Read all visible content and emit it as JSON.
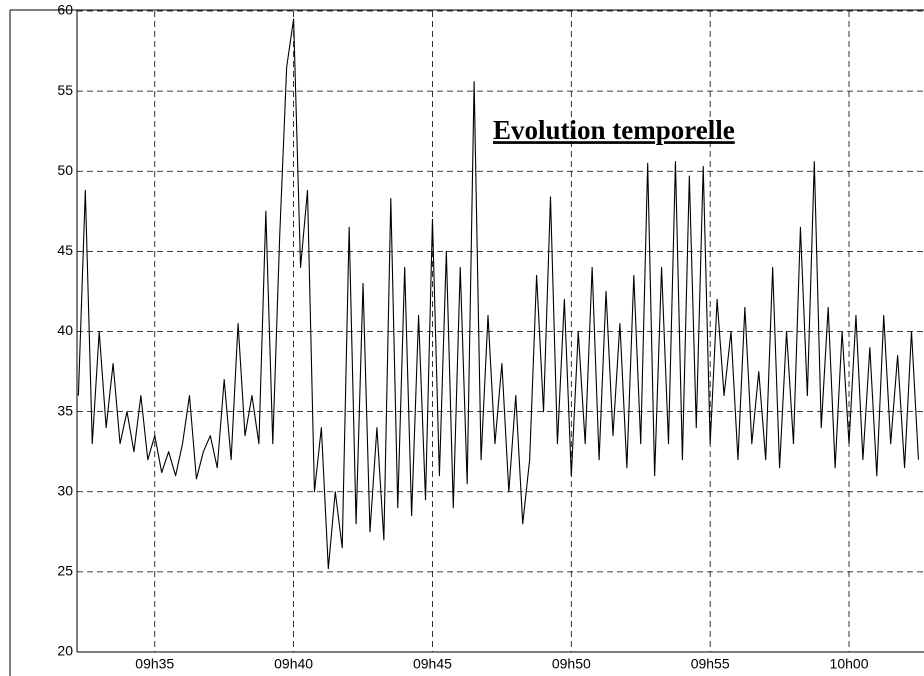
{
  "chart_data": {
    "type": "line",
    "title": "Evolution temporelle",
    "x": [
      572.25,
      572.5,
      572.75,
      573,
      573.25,
      573.5,
      573.75,
      574,
      574.25,
      574.5,
      574.75,
      575,
      575.25,
      575.5,
      575.75,
      576,
      576.25,
      576.5,
      576.75,
      577,
      577.25,
      577.5,
      577.75,
      578,
      578.25,
      578.5,
      578.75,
      579,
      579.25,
      579.5,
      579.75,
      580,
      580.25,
      580.5,
      580.75,
      581,
      581.25,
      581.5,
      581.75,
      582,
      582.25,
      582.5,
      582.75,
      583,
      583.25,
      583.5,
      583.75,
      584,
      584.25,
      584.5,
      584.75,
      585,
      585.25,
      585.5,
      585.75,
      586,
      586.25,
      586.5,
      586.75,
      587,
      587.25,
      587.5,
      587.75,
      588,
      588.25,
      588.5,
      588.75,
      589,
      589.25,
      589.5,
      589.75,
      590,
      590.25,
      590.5,
      590.75,
      591,
      591.25,
      591.5,
      591.75,
      592,
      592.25,
      592.5,
      592.75,
      593,
      593.25,
      593.5,
      593.75,
      594,
      594.25,
      594.5,
      594.75,
      595,
      595.25,
      595.5,
      595.75,
      596,
      596.25,
      596.5,
      596.75,
      597,
      597.25,
      597.5,
      597.75,
      598,
      598.25,
      598.5,
      598.75,
      599,
      599.25,
      599.5,
      599.75,
      600,
      600.25,
      600.5,
      600.75,
      601,
      601.25,
      601.5,
      601.75,
      602,
      602.25,
      602.5
    ],
    "series": [
      {
        "color": "#000000",
        "values": [
          36,
          48.8,
          33,
          40,
          34,
          38,
          33,
          35,
          32.5,
          36,
          32,
          33.5,
          31.2,
          32.5,
          31,
          33,
          36,
          30.8,
          32.5,
          33.5,
          31.5,
          37,
          32,
          40.5,
          33.5,
          36,
          33,
          47.5,
          33,
          46,
          56.5,
          59.5,
          44,
          48.8,
          30,
          34,
          25.2,
          30,
          26.5,
          46.5,
          28,
          43,
          27.5,
          34,
          27,
          48.3,
          29,
          44,
          28.5,
          41,
          29.5,
          47,
          31,
          45,
          29,
          44,
          30.5,
          55.6,
          32,
          41,
          33,
          38,
          30,
          36,
          28,
          32,
          43.5,
          35,
          48.4,
          33,
          42,
          31,
          40,
          33,
          44,
          32,
          42.5,
          33.5,
          40.5,
          31.5,
          43.5,
          33,
          50.5,
          31,
          44,
          33,
          50.6,
          32,
          49.7,
          34,
          50.3,
          33,
          42,
          36,
          40,
          32,
          41.5,
          33,
          37.5,
          32,
          44,
          31.5,
          40,
          33,
          46.5,
          36,
          50.6,
          34,
          41.5,
          31.5,
          40,
          33,
          41,
          32,
          39,
          31,
          41,
          33,
          38.5,
          31.5,
          40,
          32
        ]
      }
    ],
    "xlim": [
      572.2,
      602.7
    ],
    "xticks": [
      {
        "value": 575,
        "label": "09h35"
      },
      {
        "value": 580,
        "label": "09h40"
      },
      {
        "value": 585,
        "label": "09h45"
      },
      {
        "value": 590,
        "label": "09h50"
      },
      {
        "value": 595,
        "label": "09h55"
      },
      {
        "value": 600,
        "label": "10h00"
      }
    ],
    "ylim": [
      20,
      60
    ],
    "yticks": [
      20,
      25,
      30,
      35,
      40,
      45,
      50,
      55,
      60
    ],
    "grid": true
  }
}
